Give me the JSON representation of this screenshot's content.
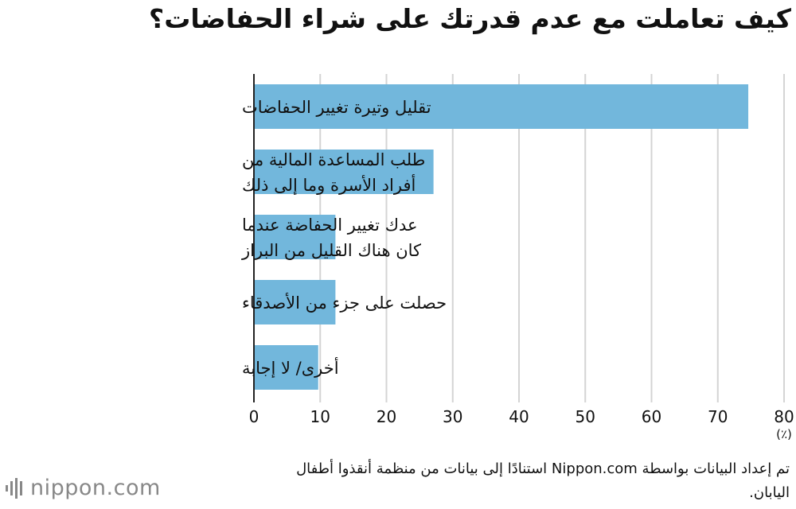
{
  "title": "كيف تعاملت مع عدم قدرتك على شراء الحفاضات؟",
  "chart_data": {
    "type": "bar",
    "orientation": "horizontal",
    "categories": [
      [
        "تقليل وتيرة تغيير الحفاضات"
      ],
      [
        "طلب المساعدة المالية من",
        "أفراد الأسرة وما إلى ذلك"
      ],
      [
        "عدك تغيير الحفاضة عندما",
        "كان هناك القليل من البراز"
      ],
      [
        "حصلت على جزء من الأصدقاء"
      ],
      [
        "أخرى/ لا إجابة"
      ]
    ],
    "values": [
      74.6,
      27.1,
      12.3,
      12.3,
      9.7
    ],
    "xlim": [
      0,
      80
    ],
    "xticks": [
      0,
      10,
      20,
      30,
      40,
      50,
      60,
      70,
      80
    ],
    "unit": "(٪)",
    "grid": true,
    "bar_color": "#72b7dc",
    "grid_color": "#d4d4d4"
  },
  "source": "تم إعداد البيانات بواسطة Nippon.com استنادًا إلى بيانات من منظمة أنقذوا أطفال اليابان.",
  "logo": {
    "text": "nippon.com",
    "color": "#888888"
  }
}
